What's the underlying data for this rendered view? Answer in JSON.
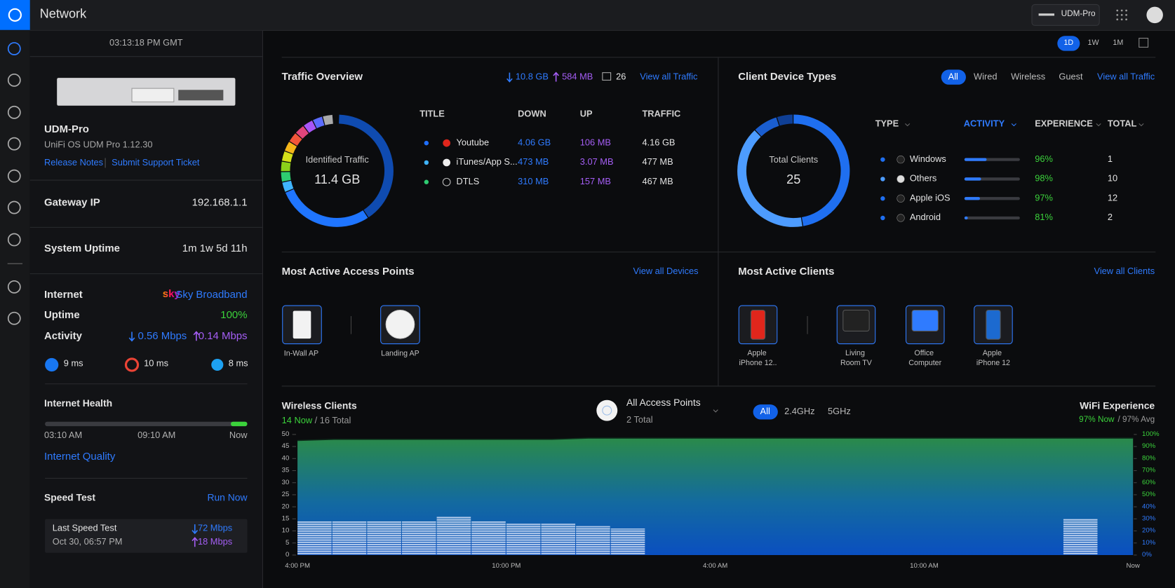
{
  "header": {
    "title": "Network",
    "device": "UDM-Pro"
  },
  "sidebar": {
    "time": "03:13:18 PM GMT",
    "device_name": "UDM-Pro",
    "firmware": "UniFi OS UDM Pro 1.12.30",
    "links": [
      "Release Notes",
      "Submit Support Ticket"
    ],
    "gateway_ip": {
      "label": "Gateway IP",
      "value": "192.168.1.1"
    },
    "system_uptime": {
      "label": "System Uptime",
      "value": "1m 1w 5d 11h"
    },
    "internet": {
      "label": "Internet",
      "isp_logo": "sky",
      "isp": "Sky Broadband"
    },
    "internet_uptime": {
      "label": "Uptime",
      "value": "100%"
    },
    "activity": {
      "label": "Activity",
      "down": "0.56 Mbps",
      "up": "0.14 Mbps"
    },
    "latency": [
      "9 ms",
      "10 ms",
      "8 ms"
    ],
    "health": {
      "title": "Internet Health",
      "times": [
        "03:10 AM",
        "09:10 AM",
        "Now"
      ],
      "link": "Internet Quality"
    },
    "speed_test": {
      "title": "Speed Test",
      "action": "Run Now",
      "last": "Last Speed Test",
      "date": "Oct 30, 06:57 PM",
      "down": "72 Mbps",
      "up": "18 Mbps"
    }
  },
  "range_buttons": [
    "1D",
    "1W",
    "1M"
  ],
  "traffic_overview": {
    "title": "Traffic Overview",
    "down": "10.8 GB",
    "up": "584 MB",
    "clients": 26,
    "link": "View all Traffic",
    "center_label": "Identified Traffic",
    "center_value": "11.4 GB",
    "columns": [
      "TITLE",
      "DOWN",
      "UP",
      "TRAFFIC"
    ],
    "rows": [
      {
        "title": "Youtube",
        "down": "4.06 GB",
        "up": "106 MB",
        "traffic": "4.16 GB"
      },
      {
        "title": "iTunes/App S...",
        "down": "473 MB",
        "up": "3.07 MB",
        "traffic": "477 MB"
      },
      {
        "title": "DTLS",
        "down": "310 MB",
        "up": "157 MB",
        "traffic": "467 MB"
      }
    ]
  },
  "client_device_types": {
    "title": "Client Device Types",
    "filters": [
      "All",
      "Wired",
      "Wireless",
      "Guest"
    ],
    "link": "View all Traffic",
    "center_label": "Total Clients",
    "center_value": 25,
    "columns": [
      "TYPE",
      "ACTIVITY",
      "EXPERIENCE",
      "TOTAL"
    ],
    "rows": [
      {
        "name": "Windows",
        "activity": 40,
        "experience": "96%",
        "total": 1
      },
      {
        "name": "Others",
        "activity": 30,
        "experience": "98%",
        "total": 10
      },
      {
        "name": "Apple iOS",
        "activity": 28,
        "experience": "97%",
        "total": 12
      },
      {
        "name": "Android",
        "activity": 6,
        "experience": "81%",
        "total": 2
      }
    ]
  },
  "most_active_access_points": {
    "title": "Most Active Access Points",
    "link": "View all Devices",
    "items": [
      "In-Wall AP",
      "Landing AP"
    ]
  },
  "most_active_clients": {
    "title": "Most Active Clients",
    "link": "View all Clients",
    "items": [
      "Apple iPhone 12..",
      "Living Room TV",
      "Office Computer",
      "Apple iPhone 12"
    ]
  },
  "wireless_clients": {
    "title": "Wireless Clients",
    "now": "14 Now",
    "total": "/ 16 Total",
    "ap_selector": "All Access Points",
    "ap_total": "2 Total",
    "bands": [
      "All",
      "2.4GHz",
      "5GHz"
    ],
    "experience_title": "WiFi Experience",
    "experience_now": "97% Now",
    "experience_avg": "/ 97% Avg",
    "chart": {
      "ylim": [
        0,
        50
      ],
      "yticks": [
        0,
        5,
        10,
        15,
        20,
        25,
        30,
        35,
        40,
        45,
        50
      ],
      "y2lim": [
        0,
        100
      ],
      "y2ticks": [
        {
          "value": 0,
          "label": "0%"
        },
        {
          "value": 10,
          "label": "10%"
        },
        {
          "value": 20,
          "label": "20%"
        },
        {
          "value": 30,
          "label": "30%"
        },
        {
          "value": 40,
          "label": "40%"
        },
        {
          "value": 50,
          "label": "50%"
        },
        {
          "value": 60,
          "label": "60%"
        },
        {
          "value": 70,
          "label": "70%"
        },
        {
          "value": 80,
          "label": "80%"
        },
        {
          "value": 90,
          "label": "90%"
        },
        {
          "value": 100,
          "label": "100%"
        }
      ],
      "x_labels": [
        "4:00 PM",
        "10:00 PM",
        "4:00 AM",
        "10:00 AM",
        "Now"
      ],
      "clients": [
        14,
        14,
        14,
        14,
        16,
        14,
        13,
        13,
        12,
        11,
        null,
        null,
        null,
        null,
        null,
        null,
        null,
        null,
        null,
        null,
        null,
        null,
        15,
        null
      ],
      "experience": [
        95,
        96,
        96,
        96,
        96,
        96,
        96,
        96,
        97,
        97,
        97,
        97,
        97,
        97,
        97,
        97,
        97,
        97,
        97,
        97,
        97,
        97,
        97,
        97
      ]
    }
  }
}
